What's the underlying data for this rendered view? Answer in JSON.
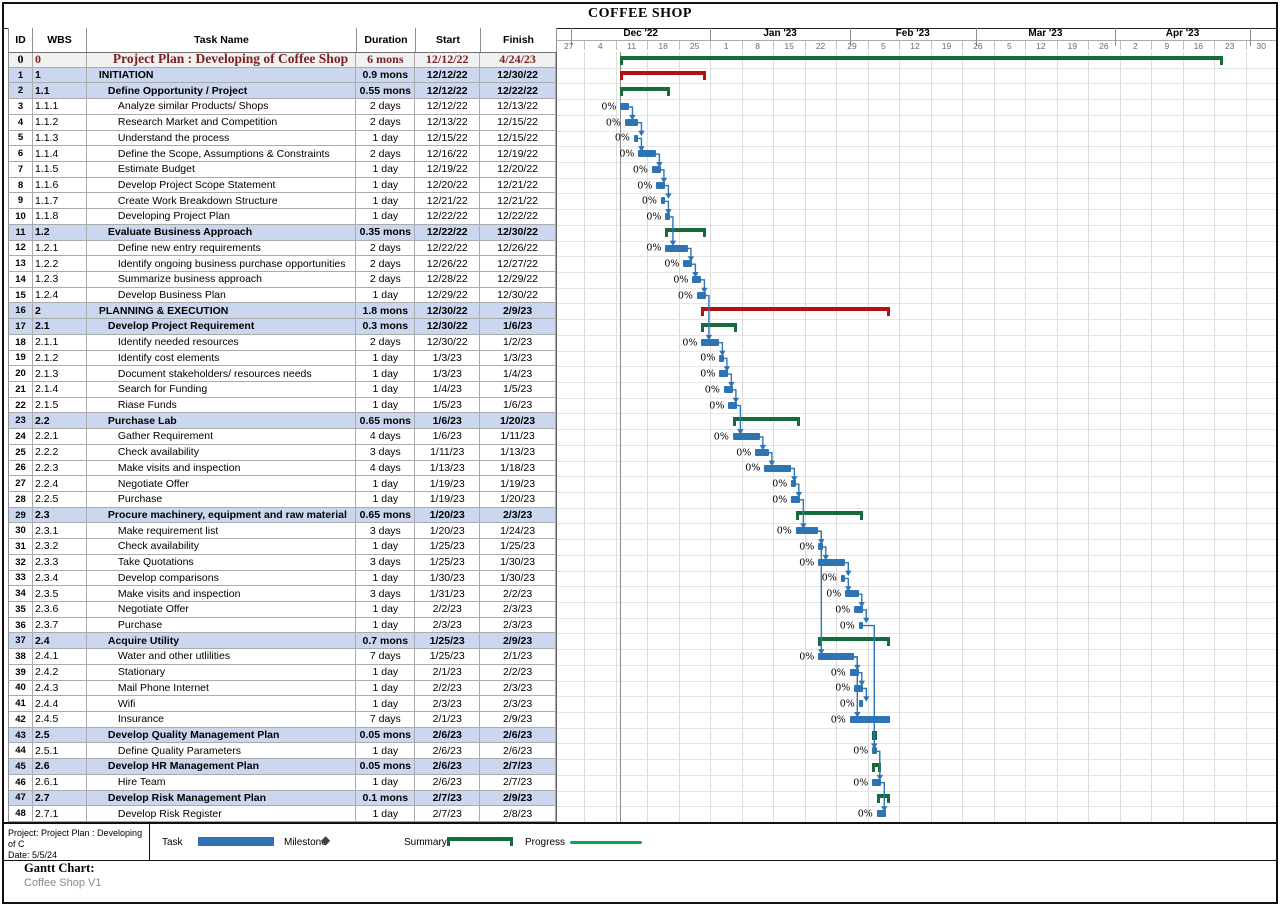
{
  "page_title": "COFFEE SHOP",
  "table": {
    "headers": [
      "ID",
      "WBS",
      "Task Name",
      "Duration",
      "Start",
      "Finish"
    ]
  },
  "chart_data": {
    "type": "gantt",
    "title": "COFFEE SHOP",
    "timescale": {
      "start": "11/27/22",
      "weeks": 23,
      "tier1_months": [
        {
          "label": "Dec '22",
          "from": "12/1/22",
          "to": "1/1/23"
        },
        {
          "label": "Jan '23",
          "from": "1/1/23",
          "to": "2/1/23"
        },
        {
          "label": "Feb '23",
          "from": "2/1/23",
          "to": "3/1/23"
        },
        {
          "label": "Mar '23",
          "from": "3/1/23",
          "to": "4/1/23"
        },
        {
          "label": "Apr '23",
          "from": "4/1/23",
          "to": "5/1/23"
        }
      ],
      "tier2_week_labels": [
        "27",
        "4",
        "11",
        "18",
        "25",
        "1",
        "8",
        "15",
        "22",
        "29",
        "5",
        "12",
        "19",
        "26",
        "5",
        "12",
        "19",
        "26",
        "2",
        "9",
        "16",
        "23",
        "30"
      ],
      "project_start_line": "12/12/22"
    },
    "colors": {
      "task": "#2E74B5",
      "summary": "#176B3B",
      "phase": "#B50F0F",
      "project": "#176B3B",
      "progress": "#0FA352",
      "link": "#2E74B5",
      "summary_row_bg": "#CBD7EE",
      "project_row_bg": "#F1F1F1",
      "project_text": "#7D2121"
    },
    "tasks": [
      {
        "id": 0,
        "wbs": "0",
        "name": "Project Plan : Developing of Coffee Shop",
        "duration": "6 mons",
        "start": "12/12/22",
        "finish": "4/24/23",
        "kind": "project",
        "progress": "0%"
      },
      {
        "id": 1,
        "wbs": "1",
        "name": "INITIATION",
        "duration": "0.9 mons",
        "start": "12/12/22",
        "finish": "12/30/22",
        "kind": "phase",
        "progress": "0%"
      },
      {
        "id": 2,
        "wbs": "1.1",
        "name": "Define Opportunity / Project",
        "duration": "0.55 mons",
        "start": "12/12/22",
        "finish": "12/22/22",
        "kind": "summary",
        "progress": "0%"
      },
      {
        "id": 3,
        "wbs": "1.1.1",
        "name": "Analyze similar Products/ Shops",
        "duration": "2 days",
        "start": "12/12/22",
        "finish": "12/13/22",
        "kind": "task",
        "progress": "0%"
      },
      {
        "id": 4,
        "wbs": "1.1.2",
        "name": "Research Market and Competition",
        "duration": "2 days",
        "start": "12/13/22",
        "finish": "12/15/22",
        "kind": "task",
        "progress": "0%"
      },
      {
        "id": 5,
        "wbs": "1.1.3",
        "name": "Understand the process",
        "duration": "1 day",
        "start": "12/15/22",
        "finish": "12/15/22",
        "kind": "task",
        "progress": "0%"
      },
      {
        "id": 6,
        "wbs": "1.1.4",
        "name": "Define the Scope, Assumptions & Constraints",
        "duration": "2 days",
        "start": "12/16/22",
        "finish": "12/19/22",
        "kind": "task",
        "progress": "0%"
      },
      {
        "id": 7,
        "wbs": "1.1.5",
        "name": "Estimate Budget",
        "duration": "1 day",
        "start": "12/19/22",
        "finish": "12/20/22",
        "kind": "task",
        "progress": "0%"
      },
      {
        "id": 8,
        "wbs": "1.1.6",
        "name": "Develop Project Scope Statement",
        "duration": "1 day",
        "start": "12/20/22",
        "finish": "12/21/22",
        "kind": "task",
        "progress": "0%"
      },
      {
        "id": 9,
        "wbs": "1.1.7",
        "name": "Create Work Breakdown Structure",
        "duration": "1 day",
        "start": "12/21/22",
        "finish": "12/21/22",
        "kind": "task",
        "progress": "0%"
      },
      {
        "id": 10,
        "wbs": "1.1.8",
        "name": "Developing Project Plan",
        "duration": "1 day",
        "start": "12/22/22",
        "finish": "12/22/22",
        "kind": "task",
        "progress": "0%"
      },
      {
        "id": 11,
        "wbs": "1.2",
        "name": "Evaluate Business Approach",
        "duration": "0.35 mons",
        "start": "12/22/22",
        "finish": "12/30/22",
        "kind": "summary",
        "progress": "0%"
      },
      {
        "id": 12,
        "wbs": "1.2.1",
        "name": "Define new entry requirements",
        "duration": "2 days",
        "start": "12/22/22",
        "finish": "12/26/22",
        "kind": "task",
        "progress": "0%"
      },
      {
        "id": 13,
        "wbs": "1.2.2",
        "name": "Identify ongoing business purchase opportunities",
        "duration": "2 days",
        "start": "12/26/22",
        "finish": "12/27/22",
        "kind": "task",
        "progress": "0%"
      },
      {
        "id": 14,
        "wbs": "1.2.3",
        "name": "Summarize business approach",
        "duration": "2 days",
        "start": "12/28/22",
        "finish": "12/29/22",
        "kind": "task",
        "progress": "0%"
      },
      {
        "id": 15,
        "wbs": "1.2.4",
        "name": "Develop Business Plan",
        "duration": "1 day",
        "start": "12/29/22",
        "finish": "12/30/22",
        "kind": "task",
        "progress": "0%"
      },
      {
        "id": 16,
        "wbs": "2",
        "name": "PLANNING & EXECUTION",
        "duration": "1.8 mons",
        "start": "12/30/22",
        "finish": "2/9/23",
        "kind": "phase",
        "progress": "0%"
      },
      {
        "id": 17,
        "wbs": "2.1",
        "name": "Develop Project Requirement",
        "duration": "0.3 mons",
        "start": "12/30/22",
        "finish": "1/6/23",
        "kind": "summary",
        "progress": "0%"
      },
      {
        "id": 18,
        "wbs": "2.1.1",
        "name": "Identify needed resources",
        "duration": "2 days",
        "start": "12/30/22",
        "finish": "1/2/23",
        "kind": "task",
        "progress": "0%"
      },
      {
        "id": 19,
        "wbs": "2.1.2",
        "name": "Identify cost elements",
        "duration": "1 day",
        "start": "1/3/23",
        "finish": "1/3/23",
        "kind": "task",
        "progress": "0%"
      },
      {
        "id": 20,
        "wbs": "2.1.3",
        "name": "Document stakeholders/ resources needs",
        "duration": "1 day",
        "start": "1/3/23",
        "finish": "1/4/23",
        "kind": "task",
        "progress": "0%"
      },
      {
        "id": 21,
        "wbs": "2.1.4",
        "name": "Search for Funding",
        "duration": "1 day",
        "start": "1/4/23",
        "finish": "1/5/23",
        "kind": "task",
        "progress": "0%"
      },
      {
        "id": 22,
        "wbs": "2.1.5",
        "name": "Riase Funds",
        "duration": "1 day",
        "start": "1/5/23",
        "finish": "1/6/23",
        "kind": "task",
        "progress": "0%"
      },
      {
        "id": 23,
        "wbs": "2.2",
        "name": "Purchase Lab",
        "duration": "0.65 mons",
        "start": "1/6/23",
        "finish": "1/20/23",
        "kind": "summary",
        "progress": "0%"
      },
      {
        "id": 24,
        "wbs": "2.2.1",
        "name": "Gather Requirement",
        "duration": "4 days",
        "start": "1/6/23",
        "finish": "1/11/23",
        "kind": "task",
        "progress": "0%"
      },
      {
        "id": 25,
        "wbs": "2.2.2",
        "name": "Check availability",
        "duration": "3 days",
        "start": "1/11/23",
        "finish": "1/13/23",
        "kind": "task",
        "progress": "0%"
      },
      {
        "id": 26,
        "wbs": "2.2.3",
        "name": "Make visits and inspection",
        "duration": "4 days",
        "start": "1/13/23",
        "finish": "1/18/23",
        "kind": "task",
        "progress": "0%"
      },
      {
        "id": 27,
        "wbs": "2.2.4",
        "name": "Negotiate Offer",
        "duration": "1 day",
        "start": "1/19/23",
        "finish": "1/19/23",
        "kind": "task",
        "progress": "0%"
      },
      {
        "id": 28,
        "wbs": "2.2.5",
        "name": "Purchase",
        "duration": "1 day",
        "start": "1/19/23",
        "finish": "1/20/23",
        "kind": "task",
        "progress": "0%"
      },
      {
        "id": 29,
        "wbs": "2.3",
        "name": "Procure machinery, equipment and raw material",
        "duration": "0.65 mons",
        "start": "1/20/23",
        "finish": "2/3/23",
        "kind": "summary",
        "progress": "0%"
      },
      {
        "id": 30,
        "wbs": "2.3.1",
        "name": "Make requirement list",
        "duration": "3 days",
        "start": "1/20/23",
        "finish": "1/24/23",
        "kind": "task",
        "progress": "0%"
      },
      {
        "id": 31,
        "wbs": "2.3.2",
        "name": "Check availability",
        "duration": "1 day",
        "start": "1/25/23",
        "finish": "1/25/23",
        "kind": "task",
        "progress": "0%"
      },
      {
        "id": 32,
        "wbs": "2.3.3",
        "name": "Take Quotations",
        "duration": "3 days",
        "start": "1/25/23",
        "finish": "1/30/23",
        "kind": "task",
        "progress": "0%"
      },
      {
        "id": 33,
        "wbs": "2.3.4",
        "name": "Develop comparisons",
        "duration": "1 day",
        "start": "1/30/23",
        "finish": "1/30/23",
        "kind": "task",
        "progress": "0%"
      },
      {
        "id": 34,
        "wbs": "2.3.5",
        "name": "Make visits and inspection",
        "duration": "3 days",
        "start": "1/31/23",
        "finish": "2/2/23",
        "kind": "task",
        "progress": "0%"
      },
      {
        "id": 35,
        "wbs": "2.3.6",
        "name": "Negotiate Offer",
        "duration": "1 day",
        "start": "2/2/23",
        "finish": "2/3/23",
        "kind": "task",
        "progress": "0%"
      },
      {
        "id": 36,
        "wbs": "2.3.7",
        "name": "Purchase",
        "duration": "1 day",
        "start": "2/3/23",
        "finish": "2/3/23",
        "kind": "task",
        "progress": "0%"
      },
      {
        "id": 37,
        "wbs": "2.4",
        "name": "Acquire Utility",
        "duration": "0.7 mons",
        "start": "1/25/23",
        "finish": "2/9/23",
        "kind": "summary",
        "progress": "0%"
      },
      {
        "id": 38,
        "wbs": "2.4.1",
        "name": "Water and other utlilities",
        "duration": "7 days",
        "start": "1/25/23",
        "finish": "2/1/23",
        "kind": "task",
        "progress": "0%"
      },
      {
        "id": 39,
        "wbs": "2.4.2",
        "name": "Stationary",
        "duration": "1 day",
        "start": "2/1/23",
        "finish": "2/2/23",
        "kind": "task",
        "progress": "0%"
      },
      {
        "id": 40,
        "wbs": "2.4.3",
        "name": "Mail Phone Internet",
        "duration": "1 day",
        "start": "2/2/23",
        "finish": "2/3/23",
        "kind": "task",
        "progress": "0%"
      },
      {
        "id": 41,
        "wbs": "2.4.4",
        "name": "Wifi",
        "duration": "1 day",
        "start": "2/3/23",
        "finish": "2/3/23",
        "kind": "task",
        "progress": "0%"
      },
      {
        "id": 42,
        "wbs": "2.4.5",
        "name": "Insurance",
        "duration": "7 days",
        "start": "2/1/23",
        "finish": "2/9/23",
        "kind": "task",
        "progress": "0%"
      },
      {
        "id": 43,
        "wbs": "2.5",
        "name": "Develop Quality Management Plan",
        "duration": "0.05 mons",
        "start": "2/6/23",
        "finish": "2/6/23",
        "kind": "summary",
        "progress": "0%"
      },
      {
        "id": 44,
        "wbs": "2.5.1",
        "name": "Define Quality Parameters",
        "duration": "1 day",
        "start": "2/6/23",
        "finish": "2/6/23",
        "kind": "task",
        "progress": "0%"
      },
      {
        "id": 45,
        "wbs": "2.6",
        "name": "Develop HR Management Plan",
        "duration": "0.05 mons",
        "start": "2/6/23",
        "finish": "2/7/23",
        "kind": "summary",
        "progress": "0%"
      },
      {
        "id": 46,
        "wbs": "2.6.1",
        "name": "Hire Team",
        "duration": "1 day",
        "start": "2/6/23",
        "finish": "2/7/23",
        "kind": "task",
        "progress": "0%"
      },
      {
        "id": 47,
        "wbs": "2.7",
        "name": "Develop Risk Management Plan",
        "duration": "0.1 mons",
        "start": "2/7/23",
        "finish": "2/9/23",
        "kind": "summary",
        "progress": "0%"
      },
      {
        "id": 48,
        "wbs": "2.7.1",
        "name": "Develop Risk Register",
        "duration": "1 day",
        "start": "2/7/23",
        "finish": "2/8/23",
        "kind": "task",
        "progress": "0%"
      }
    ],
    "links": [
      [
        3,
        4
      ],
      [
        4,
        5
      ],
      [
        5,
        6
      ],
      [
        6,
        7
      ],
      [
        7,
        8
      ],
      [
        8,
        9
      ],
      [
        9,
        10
      ],
      [
        10,
        12
      ],
      [
        12,
        13
      ],
      [
        13,
        14
      ],
      [
        14,
        15
      ],
      [
        15,
        18
      ],
      [
        18,
        19
      ],
      [
        19,
        20
      ],
      [
        20,
        21
      ],
      [
        21,
        22
      ],
      [
        22,
        24
      ],
      [
        24,
        25
      ],
      [
        25,
        26
      ],
      [
        26,
        27
      ],
      [
        27,
        28
      ],
      [
        28,
        30
      ],
      [
        30,
        31
      ],
      [
        31,
        32
      ],
      [
        32,
        33
      ],
      [
        33,
        34
      ],
      [
        34,
        35
      ],
      [
        35,
        36
      ],
      [
        30,
        38
      ],
      [
        38,
        39
      ],
      [
        39,
        40
      ],
      [
        40,
        41
      ],
      [
        38,
        42
      ],
      [
        36,
        44
      ],
      [
        44,
        46
      ],
      [
        46,
        48
      ]
    ]
  },
  "legend": {
    "project_line1": "Project: Project Plan : Developing of C",
    "project_line2": "Date: 5/5/24",
    "task_label": "Task",
    "milestone_label": "Milestone",
    "milestone_symbol": "◆",
    "summary_label": "Summary",
    "progress_label": "Progress"
  },
  "footer": {
    "heading": "Gantt Chart:",
    "subtitle": "Coffee Shop V1"
  }
}
